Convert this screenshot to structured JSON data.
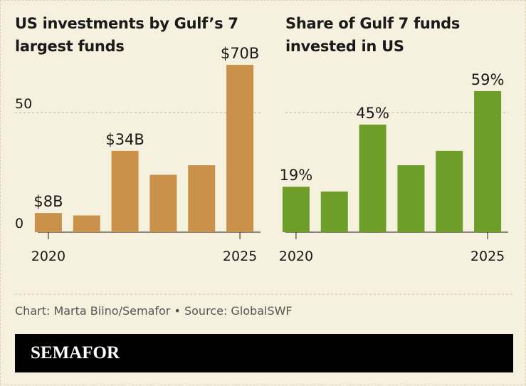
{
  "chart_data": [
    {
      "type": "bar",
      "title": "US investments by Gulf’s 7 largest funds",
      "categories": [
        "2020",
        null,
        null,
        null,
        null,
        "2025"
      ],
      "values": [
        8,
        7,
        34,
        24,
        28,
        70
      ],
      "value_labels": [
        "$8B",
        null,
        "$34B",
        null,
        null,
        "$70B"
      ],
      "color": "#c9914a",
      "ylim": [
        0,
        70
      ],
      "yticks": [
        0,
        50
      ],
      "show_ytick_labels": true,
      "grid": true
    },
    {
      "type": "bar",
      "title": "Share of Gulf 7 funds invested in US",
      "categories": [
        "2020",
        null,
        null,
        null,
        null,
        "2025"
      ],
      "values": [
        19,
        17,
        45,
        28,
        34,
        59
      ],
      "value_labels": [
        "19%",
        null,
        "45%",
        null,
        null,
        "59%"
      ],
      "color": "#6e9d2a",
      "ylim": [
        0,
        70
      ],
      "yticks": [
        50
      ],
      "show_ytick_labels": false,
      "grid": true
    }
  ],
  "footer": {
    "credit": "Chart: Marta Biino/Semafor • Source: GlobalSWF",
    "brand": "SEMAFOR"
  }
}
